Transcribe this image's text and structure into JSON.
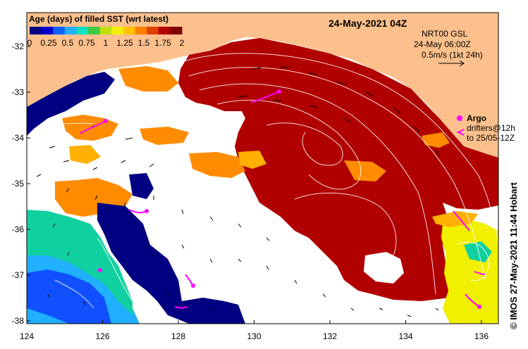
{
  "map": {
    "title": "24-May-2021 04Z",
    "colorbar": {
      "label": "Age (days) of filled SST (wrt latest)",
      "ticks": [
        "0",
        "0.25",
        "0.5",
        "0.75",
        "1",
        "1.25",
        "1.5",
        "1.75",
        "2"
      ],
      "colors": [
        "#000080",
        "#0000d0",
        "#1060ff",
        "#20b0ff",
        "#10e0c0",
        "#40c840",
        "#c0e010",
        "#f0f000",
        "#ffc000",
        "#ff8000",
        "#e04000",
        "#b00000",
        "#800000"
      ]
    },
    "legend": {
      "current_source": "NRT00 GSL",
      "current_time": "24-May 06:00Z",
      "current_scale": "0.5m/s (1kt 24h)",
      "argo_label": "Argo",
      "drifter_line1": "drifters@12h",
      "drifter_line2": "to 25/05-12Z"
    },
    "x_ticks": [
      "124",
      "126",
      "128",
      "130",
      "132",
      "134",
      "136"
    ],
    "y_ticks": [
      "-32",
      "-33",
      "-34",
      "-35",
      "-36",
      "-37",
      "-38"
    ],
    "credit": "© IMOS 27-May-2021 11:44 Hobart",
    "colors": {
      "land": "#fcc08c",
      "age_2_plus": "#b00000",
      "age_1_75": "#ff8c00",
      "age_1_5": "#ffb000",
      "age_0": "#000080",
      "age_0_25": "#1050ff",
      "age_0_5": "#20b0ff",
      "age_0_75": "#10d0a0",
      "age_1_25": "#f0f000",
      "argo": "#ff00ff"
    }
  }
}
